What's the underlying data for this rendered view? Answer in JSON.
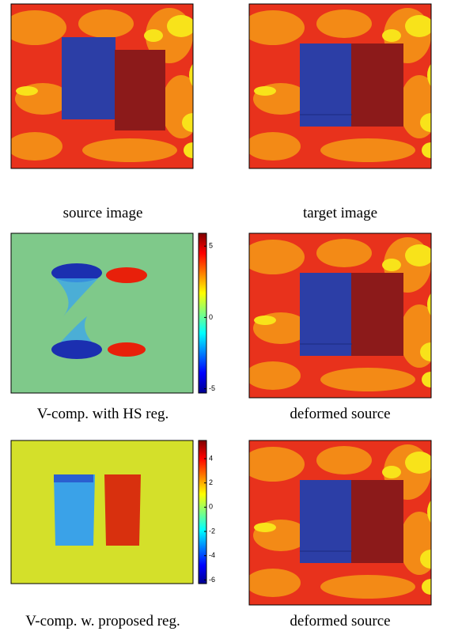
{
  "panels": [
    {
      "caption": "source image"
    },
    {
      "caption": "target image"
    },
    {
      "caption": "V-comp. with HS reg.",
      "colorbar": {
        "lim": [
          -5.3,
          5.9
        ],
        "ticks": [
          5,
          0,
          -5
        ]
      }
    },
    {
      "caption": "deformed source"
    },
    {
      "caption": "V-comp. w. proposed reg.",
      "colorbar": {
        "lim": [
          -6.3,
          5.5
        ],
        "ticks": [
          4,
          2,
          0,
          -2,
          -4,
          -6
        ]
      }
    },
    {
      "caption": "deformed source"
    }
  ]
}
